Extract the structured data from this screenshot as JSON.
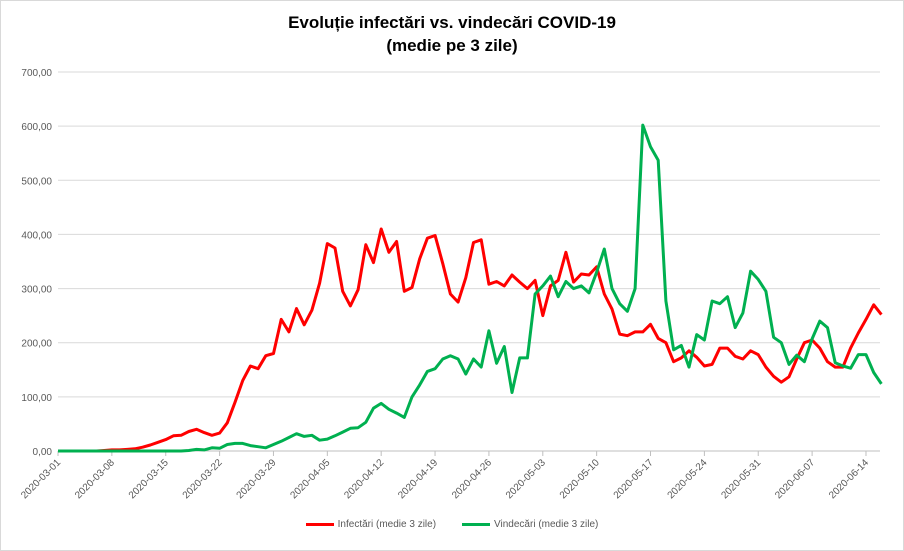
{
  "chart_data": {
    "type": "line",
    "title": "Evoluție infectări vs. vindecări COVID-19",
    "subtitle": "(medie pe 3 zile)",
    "xlabel": "",
    "ylabel": "",
    "x_start": "2020-03-01",
    "x_step_days": 1,
    "x_ticks": [
      "2020-03-01",
      "2020-03-08",
      "2020-03-15",
      "2020-03-22",
      "2020-03-29",
      "2020-04-05",
      "2020-04-12",
      "2020-04-19",
      "2020-04-26",
      "2020-05-03",
      "2020-05-10",
      "2020-05-17",
      "2020-05-24",
      "2020-05-31",
      "2020-06-07",
      "2020-06-14"
    ],
    "y_ticks": [
      "0,00",
      "100,00",
      "200,00",
      "300,00",
      "400,00",
      "500,00",
      "600,00",
      "700,00"
    ],
    "ylim": [
      0,
      700
    ],
    "grid": true,
    "legend_position": "bottom",
    "series": [
      {
        "name": "Infectări (medie 3 zile)",
        "color": "#ff0000",
        "values": [
          0,
          0,
          0,
          0,
          0,
          0,
          1,
          2,
          2,
          3,
          4,
          7,
          11,
          16,
          21,
          28,
          29,
          36,
          40,
          34,
          29,
          33,
          52,
          90,
          130,
          157,
          152,
          176,
          180,
          243,
          220,
          263,
          233,
          260,
          310,
          383,
          375,
          295,
          268,
          298,
          381,
          348,
          410,
          367,
          387,
          295,
          302,
          355,
          393,
          398,
          346,
          290,
          275,
          320,
          385,
          390,
          308,
          313,
          305,
          325,
          312,
          300,
          315,
          250,
          305,
          315,
          367,
          312,
          327,
          325,
          340,
          290,
          262,
          216,
          213,
          220,
          220,
          234,
          208,
          200,
          165,
          172,
          185,
          173,
          157,
          160,
          190,
          190,
          175,
          170,
          185,
          178,
          155,
          138,
          127,
          137,
          170,
          200,
          205,
          190,
          165,
          155,
          155,
          190,
          218,
          243,
          270,
          252
        ]
      },
      {
        "name": "Vindecări (medie 3 zile)",
        "color": "#00b050",
        "values": [
          0,
          0,
          0,
          0,
          0,
          0,
          0,
          0,
          0,
          0,
          0,
          0,
          0,
          0,
          0,
          0,
          0,
          1,
          3,
          2,
          6,
          5,
          12,
          14,
          14,
          10,
          8,
          6,
          12,
          18,
          25,
          32,
          27,
          29,
          20,
          22,
          28,
          35,
          42,
          43,
          53,
          79,
          88,
          77,
          70,
          62,
          100,
          122,
          147,
          152,
          170,
          176,
          170,
          142,
          170,
          155,
          222,
          162,
          193,
          108,
          172,
          172,
          290,
          305,
          323,
          285,
          313,
          300,
          305,
          292,
          330,
          373,
          300,
          272,
          258,
          300,
          602,
          562,
          537,
          277,
          187,
          195,
          155,
          215,
          205,
          277,
          272,
          285,
          228,
          255,
          332,
          317,
          295,
          210,
          200,
          160,
          177,
          165,
          207,
          240,
          228,
          163,
          157,
          153,
          178,
          178,
          145,
          124
        ]
      }
    ]
  }
}
